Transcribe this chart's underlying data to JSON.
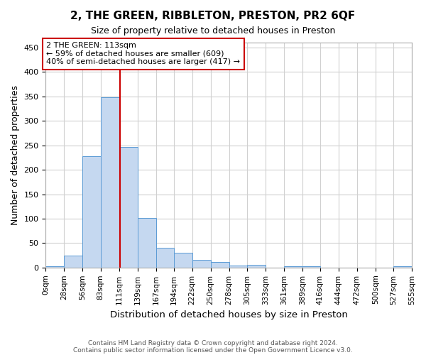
{
  "title": "2, THE GREEN, RIBBLETON, PRESTON, PR2 6QF",
  "subtitle": "Size of property relative to detached houses in Preston",
  "xlabel": "Distribution of detached houses by size in Preston",
  "ylabel": "Number of detached properties",
  "footer_line1": "Contains HM Land Registry data © Crown copyright and database right 2024.",
  "footer_line2": "Contains public sector information licensed under the Open Government Licence v3.0.",
  "annotation_line1": "2 THE GREEN: 113sqm",
  "annotation_line2": "← 59% of detached houses are smaller (609)",
  "annotation_line3": "40% of semi-detached houses are larger (417) →",
  "bar_edges": [
    0,
    28,
    56,
    83,
    111,
    139,
    167,
    194,
    222,
    250,
    278,
    305,
    333,
    361,
    389,
    416,
    444,
    472,
    500,
    527,
    555
  ],
  "bar_heights": [
    3,
    25,
    228,
    348,
    246,
    101,
    40,
    30,
    15,
    12,
    4,
    5,
    0,
    3,
    3,
    0,
    0,
    0,
    0,
    3
  ],
  "bar_color": "#c5d8f0",
  "bar_edge_color": "#5b9bd5",
  "vline_x": 113,
  "vline_color": "#cc0000",
  "annotation_box_color": "#cc0000",
  "ylim": [
    0,
    460
  ],
  "yticks": [
    0,
    50,
    100,
    150,
    200,
    250,
    300,
    350,
    400,
    450
  ],
  "tick_labels": [
    "0sqm",
    "28sqm",
    "56sqm",
    "83sqm",
    "111sqm",
    "139sqm",
    "167sqm",
    "194sqm",
    "222sqm",
    "250sqm",
    "278sqm",
    "305sqm",
    "333sqm",
    "361sqm",
    "389sqm",
    "416sqm",
    "444sqm",
    "472sqm",
    "500sqm",
    "527sqm",
    "555sqm"
  ],
  "background_color": "#ffffff",
  "grid_color": "#d0d0d0"
}
